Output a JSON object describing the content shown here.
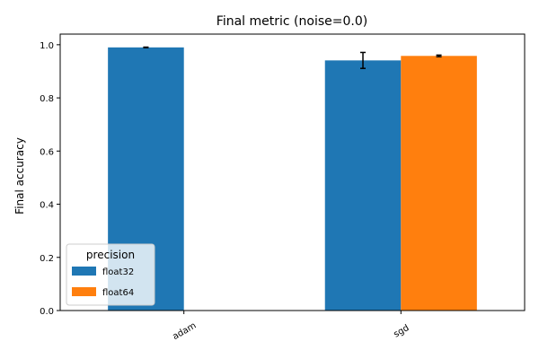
{
  "chart_data": {
    "type": "bar",
    "title": "Final metric (noise=0.0)",
    "xlabel": "",
    "ylabel": "Final accuracy",
    "categories": [
      "adam",
      "sgd"
    ],
    "ylim": [
      0,
      1.04
    ],
    "yticks": [
      "0.0",
      "0.2",
      "0.4",
      "0.6",
      "0.8",
      "1.0"
    ],
    "ytick_values": [
      0,
      0.2,
      0.4,
      0.6,
      0.8,
      1.0
    ],
    "legend": {
      "title": "precision",
      "placement": "lower-left"
    },
    "grid": false,
    "series": [
      {
        "name": "float32",
        "color": "#1f77b4",
        "values": [
          0.99,
          0.941
        ],
        "errors": [
          0.001,
          0.03
        ]
      },
      {
        "name": "float64",
        "color": "#ff7f0e",
        "values": [
          null,
          0.958
        ],
        "errors": [
          null,
          0.003
        ]
      }
    ]
  }
}
